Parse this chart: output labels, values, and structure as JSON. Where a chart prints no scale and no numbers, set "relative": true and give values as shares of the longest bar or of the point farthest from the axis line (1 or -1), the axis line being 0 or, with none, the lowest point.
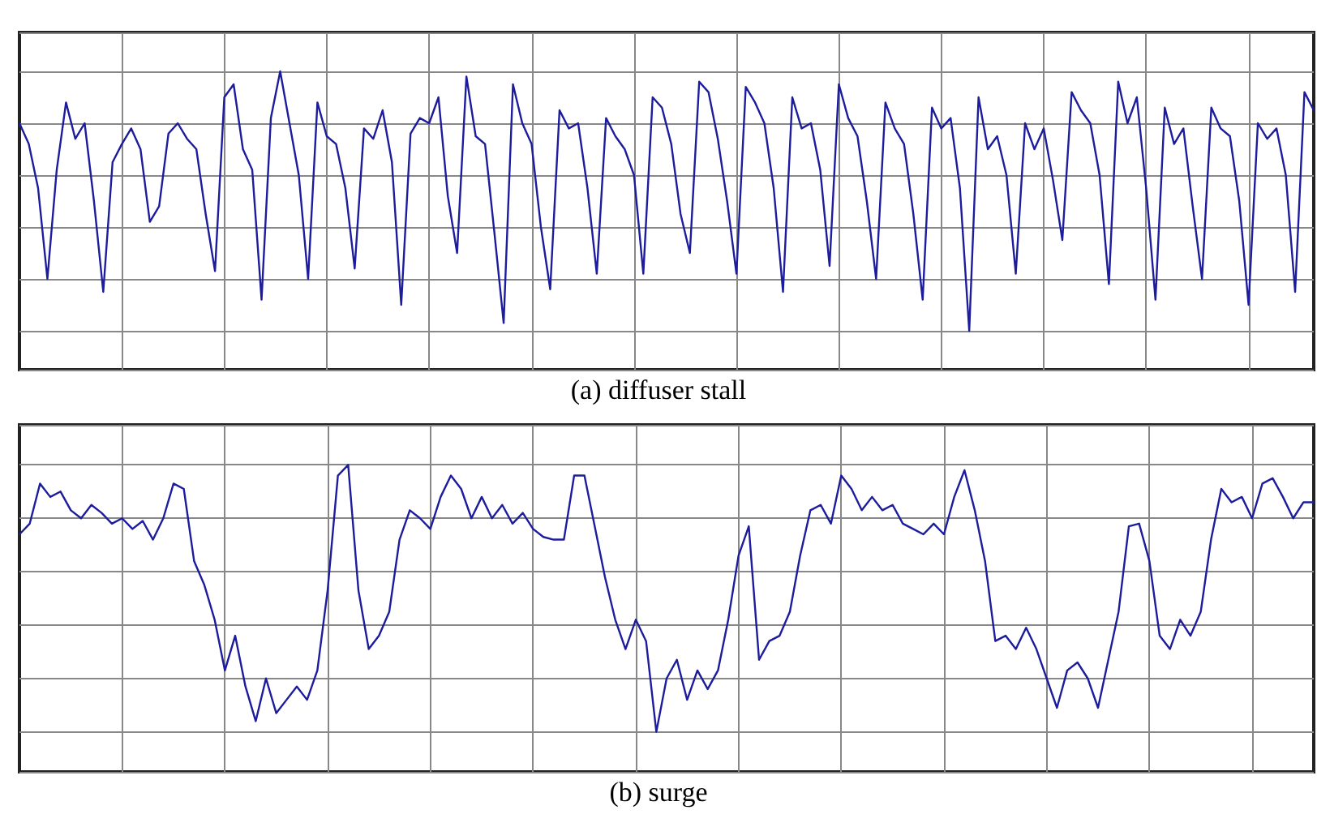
{
  "chart_data": [
    {
      "type": "line",
      "title": "(a) diffuser stall",
      "relative": true,
      "grid": true,
      "tick_labels": false,
      "categories": [
        null,
        null,
        null,
        null,
        null,
        null,
        null,
        null,
        null,
        null,
        null,
        null,
        null,
        null,
        null,
        null,
        null,
        null,
        null,
        null,
        null,
        null,
        null,
        null,
        null,
        null,
        null,
        null,
        null,
        null,
        null,
        null,
        null,
        null,
        null,
        null,
        null,
        null,
        null,
        null,
        null,
        null,
        null,
        null,
        null,
        null,
        null,
        null,
        null,
        null,
        null,
        null,
        null,
        null,
        null,
        null,
        null,
        null,
        null,
        null,
        null,
        null,
        null,
        null,
        null,
        null,
        null,
        null,
        null,
        null,
        null,
        null,
        null,
        null,
        null,
        null,
        null,
        null,
        null,
        null,
        null,
        null,
        null,
        null,
        null,
        null,
        null,
        null,
        null,
        null,
        null,
        null,
        null,
        null,
        null,
        null,
        null,
        null,
        null,
        null,
        null,
        null,
        null,
        null,
        null,
        null,
        null,
        null,
        null,
        null,
        null,
        null,
        null,
        null,
        null,
        null,
        null,
        null,
        null,
        null,
        null,
        null,
        null,
        null,
        null,
        null,
        null,
        null,
        null,
        null,
        null,
        null,
        null,
        null,
        null,
        null,
        null,
        null,
        null,
        null
      ],
      "series": [
        {
          "color": "#1c1c9c",
          "values": [
            0.8,
            0.72,
            0.55,
            0.2,
            0.62,
            0.88,
            0.74,
            0.8,
            0.5,
            0.15,
            0.65,
            0.72,
            0.78,
            0.7,
            0.42,
            0.48,
            0.76,
            0.8,
            0.74,
            0.7,
            0.45,
            0.23,
            0.9,
            0.95,
            0.7,
            0.62,
            0.12,
            0.82,
            1.0,
            0.8,
            0.6,
            0.2,
            0.88,
            0.75,
            0.72,
            0.55,
            0.24,
            0.78,
            0.74,
            0.85,
            0.65,
            0.1,
            0.76,
            0.82,
            0.8,
            0.9,
            0.52,
            0.3,
            0.98,
            0.75,
            0.72,
            0.38,
            0.03,
            0.95,
            0.8,
            0.72,
            0.4,
            0.16,
            0.85,
            0.78,
            0.8,
            0.55,
            0.22,
            0.82,
            0.75,
            0.7,
            0.6,
            0.22,
            0.9,
            0.86,
            0.72,
            0.45,
            0.3,
            0.96,
            0.92,
            0.74,
            0.5,
            0.22,
            0.94,
            0.88,
            0.8,
            0.55,
            0.15,
            0.9,
            0.78,
            0.8,
            0.62,
            0.25,
            0.95,
            0.82,
            0.75,
            0.5,
            0.2,
            0.88,
            0.78,
            0.72,
            0.45,
            0.12,
            0.86,
            0.78,
            0.82,
            0.55,
            0.0,
            0.9,
            0.7,
            0.75,
            0.6,
            0.22,
            0.8,
            0.7,
            0.78,
            0.58,
            0.35,
            0.92,
            0.85,
            0.8,
            0.6,
            0.18,
            0.96,
            0.8,
            0.9,
            0.55,
            0.12,
            0.86,
            0.72,
            0.78,
            0.48,
            0.2,
            0.86,
            0.78,
            0.75,
            0.5,
            0.1,
            0.8,
            0.74,
            0.78,
            0.6,
            0.15,
            0.92,
            0.85
          ]
        }
      ]
    },
    {
      "type": "line",
      "title": "(b) surge",
      "relative": true,
      "grid": true,
      "tick_labels": false,
      "categories": [
        null,
        null,
        null,
        null,
        null,
        null,
        null,
        null,
        null,
        null,
        null,
        null,
        null,
        null,
        null,
        null,
        null,
        null,
        null,
        null,
        null,
        null,
        null,
        null,
        null,
        null,
        null,
        null,
        null,
        null,
        null,
        null,
        null,
        null,
        null,
        null,
        null,
        null,
        null,
        null,
        null,
        null,
        null,
        null,
        null,
        null,
        null,
        null,
        null,
        null,
        null,
        null,
        null,
        null,
        null,
        null,
        null,
        null,
        null,
        null,
        null,
        null,
        null,
        null,
        null,
        null,
        null,
        null,
        null,
        null,
        null,
        null,
        null,
        null,
        null,
        null,
        null,
        null,
        null,
        null,
        null,
        null,
        null,
        null,
        null,
        null,
        null,
        null,
        null,
        null,
        null,
        null,
        null,
        null,
        null,
        null,
        null,
        null,
        null,
        null,
        null,
        null,
        null,
        null,
        null,
        null,
        null,
        null,
        null,
        null,
        null,
        null,
        null,
        null,
        null,
        null,
        null,
        null,
        null,
        null,
        null,
        null,
        null,
        null,
        null,
        null,
        null
      ],
      "series": [
        {
          "color": "#1c1c9c",
          "values": [
            0.74,
            0.78,
            0.93,
            0.88,
            0.9,
            0.83,
            0.8,
            0.85,
            0.82,
            0.78,
            0.8,
            0.76,
            0.79,
            0.72,
            0.8,
            0.93,
            0.91,
            0.64,
            0.55,
            0.42,
            0.23,
            0.36,
            0.17,
            0.04,
            0.2,
            0.07,
            0.12,
            0.17,
            0.12,
            0.23,
            0.53,
            0.96,
            1.0,
            0.53,
            0.31,
            0.36,
            0.45,
            0.72,
            0.83,
            0.8,
            0.76,
            0.88,
            0.96,
            0.91,
            0.8,
            0.88,
            0.8,
            0.85,
            0.78,
            0.82,
            0.76,
            0.73,
            0.72,
            0.72,
            0.96,
            0.96,
            0.77,
            0.58,
            0.42,
            0.31,
            0.42,
            0.34,
            0.0,
            0.2,
            0.27,
            0.12,
            0.23,
            0.16,
            0.23,
            0.42,
            0.66,
            0.77,
            0.27,
            0.34,
            0.36,
            0.45,
            0.66,
            0.83,
            0.85,
            0.78,
            0.96,
            0.91,
            0.83,
            0.88,
            0.83,
            0.85,
            0.78,
            0.76,
            0.74,
            0.78,
            0.74,
            0.88,
            0.98,
            0.83,
            0.64,
            0.34,
            0.36,
            0.31,
            0.39,
            0.31,
            0.2,
            0.09,
            0.23,
            0.26,
            0.2,
            0.09,
            0.27,
            0.45,
            0.77,
            0.78,
            0.64,
            0.36,
            0.31,
            0.42,
            0.36,
            0.45,
            0.72,
            0.91,
            0.86,
            0.88,
            0.8,
            0.93,
            0.95,
            0.88,
            0.8,
            0.86,
            0.86
          ]
        }
      ]
    }
  ]
}
